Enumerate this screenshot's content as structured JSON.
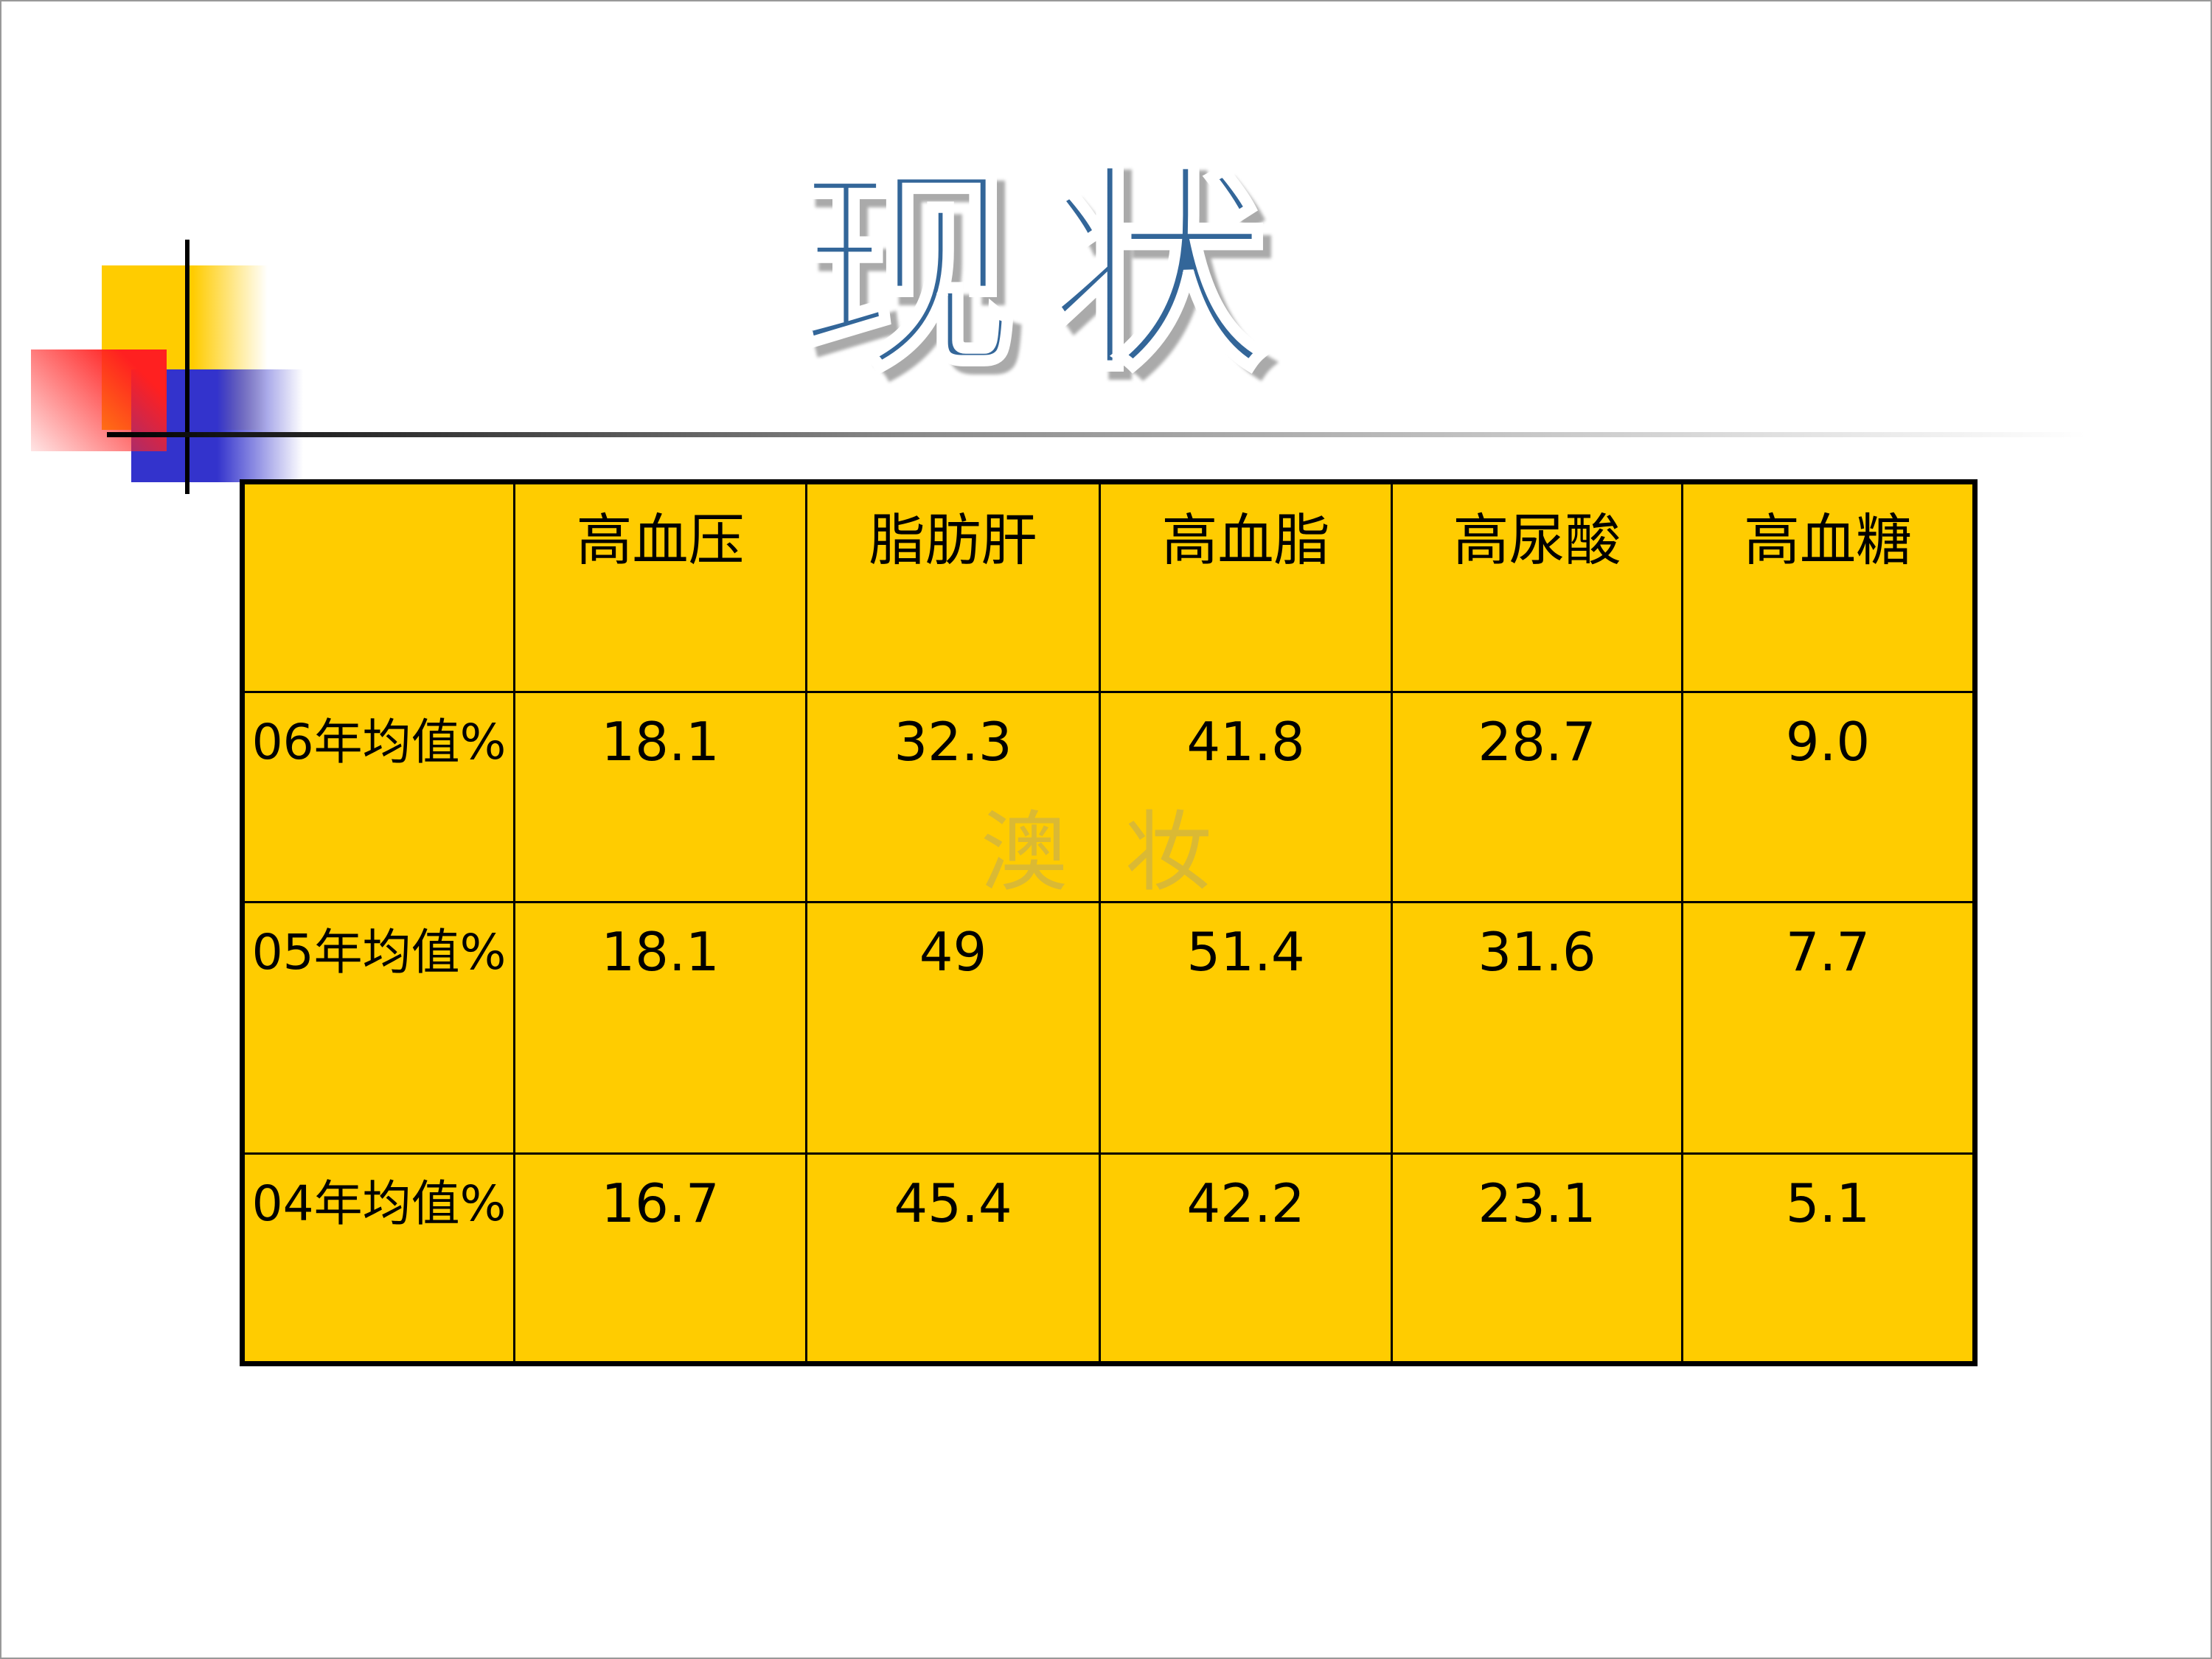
{
  "title": "现状",
  "watermark": "澳 妆",
  "table": {
    "header": [
      "高血压",
      "脂肪肝",
      "高血脂",
      "高尿酸",
      "高血糖"
    ],
    "rows": [
      {
        "label": "06年均值%",
        "cells": [
          "18.1",
          "32.3",
          "41.8",
          "28.7",
          "9.0"
        ]
      },
      {
        "label": "05年均值%",
        "cells": [
          "18.1",
          "49",
          "51.4",
          "31.6",
          "7.7"
        ]
      },
      {
        "label": "04年均值%",
        "cells": [
          "16.7",
          "45.4",
          "42.2",
          "23.1",
          "5.1"
        ]
      }
    ]
  }
}
